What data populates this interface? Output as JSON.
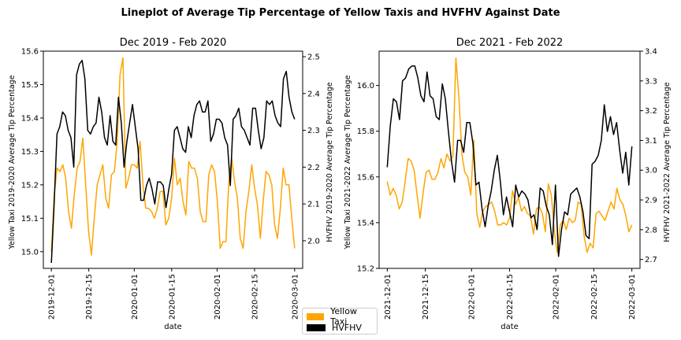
{
  "title": "Lineplot of Average Tip Percentage of Yellow Taxis and HVFHV Against Date",
  "legend": {
    "items": [
      {
        "label": "Yellow Taxi",
        "color": "#FFA500"
      },
      {
        "label": "HVFHV",
        "color": "#000000"
      }
    ]
  },
  "chart_data": [
    {
      "type": "line",
      "title": "Dec 2019 - Feb 2020",
      "xlabel": "date",
      "ylabel_left": "Yellow Taxi 2019-2020 Average Tip Percentage",
      "ylabel_right": "HVFHV 2019-2020 Average Tip Percentage",
      "x_start": "2019-12-01",
      "x_end": "2020-03-01",
      "xlim": [
        "2019-11-28",
        "2020-03-04"
      ],
      "x_ticks": [
        "2019-12-01",
        "2019-12-15",
        "2020-01-01",
        "2020-01-15",
        "2020-02-01",
        "2020-02-15",
        "2020-03-01"
      ],
      "ylim_left": [
        14.95,
        15.6
      ],
      "y_ticks_left": [
        "15.0",
        "15.1",
        "15.2",
        "15.3",
        "15.4",
        "15.5",
        "15.6"
      ],
      "ylim_right": [
        1.925,
        2.515
      ],
      "y_ticks_right": [
        "2.0",
        "2.1",
        "2.2",
        "2.3",
        "2.4",
        "2.5"
      ],
      "series": [
        {
          "name": "Yellow Taxi",
          "axis": "left",
          "color": "#FFA500",
          "values": [
            15.0,
            15.17,
            15.25,
            15.24,
            15.26,
            15.22,
            15.12,
            15.07,
            15.17,
            15.25,
            15.27,
            15.34,
            15.2,
            15.06,
            14.99,
            15.1,
            15.2,
            15.23,
            15.26,
            15.16,
            15.13,
            15.23,
            15.24,
            15.33,
            15.53,
            15.58,
            15.19,
            15.22,
            15.26,
            15.26,
            15.25,
            15.33,
            15.2,
            15.13,
            15.13,
            15.12,
            15.1,
            15.13,
            15.18,
            15.18,
            15.08,
            15.1,
            15.16,
            15.28,
            15.2,
            15.22,
            15.15,
            15.11,
            15.27,
            15.25,
            15.25,
            15.22,
            15.12,
            15.09,
            15.09,
            15.23,
            15.26,
            15.24,
            15.15,
            15.01,
            15.03,
            15.03,
            15.21,
            15.28,
            15.21,
            15.16,
            15.04,
            15.01,
            15.12,
            15.18,
            15.26,
            15.19,
            15.14,
            15.04,
            15.15,
            15.24,
            15.23,
            15.2,
            15.08,
            15.04,
            15.13,
            15.25,
            15.2,
            15.2,
            15.1,
            15.01
          ]
        },
        {
          "name": "HVFHV",
          "axis": "right",
          "color": "#000000",
          "values": [
            1.94,
            2.1,
            2.29,
            2.31,
            2.35,
            2.34,
            2.3,
            2.28,
            2.2,
            2.45,
            2.48,
            2.49,
            2.44,
            2.3,
            2.29,
            2.31,
            2.32,
            2.39,
            2.35,
            2.28,
            2.26,
            2.34,
            2.27,
            2.26,
            2.39,
            2.32,
            2.2,
            2.27,
            2.32,
            2.37,
            2.31,
            2.25,
            2.11,
            2.11,
            2.15,
            2.17,
            2.14,
            2.1,
            2.16,
            2.16,
            2.15,
            2.09,
            2.14,
            2.18,
            2.3,
            2.31,
            2.28,
            2.25,
            2.24,
            2.31,
            2.28,
            2.34,
            2.37,
            2.38,
            2.35,
            2.35,
            2.38,
            2.27,
            2.29,
            2.33,
            2.33,
            2.32,
            2.28,
            2.26,
            2.15,
            2.33,
            2.34,
            2.36,
            2.31,
            2.3,
            2.28,
            2.26,
            2.36,
            2.36,
            2.3,
            2.25,
            2.28,
            2.38,
            2.37,
            2.38,
            2.34,
            2.32,
            2.31,
            2.44,
            2.46,
            2.39,
            2.35,
            2.33
          ]
        }
      ]
    },
    {
      "type": "line",
      "title": "Dec 2021 - Feb 2022",
      "xlabel": "date",
      "ylabel_left": "Yellow Taxi 2021-2022 Average Tip Percentage",
      "ylabel_right": "HVFHV 2021-2022 Average Tip Percentage",
      "x_start": "2021-12-01",
      "x_end": "2022-03-01",
      "xlim": [
        "2021-11-28",
        "2022-03-04"
      ],
      "x_ticks": [
        "2021-12-01",
        "2021-12-15",
        "2022-01-01",
        "2022-01-15",
        "2022-02-01",
        "2022-02-15",
        "2022-03-01"
      ],
      "ylim_left": [
        15.2,
        16.15
      ],
      "y_ticks_left": [
        "15.2",
        "15.4",
        "15.6",
        "15.8",
        "16.0"
      ],
      "ylim_right": [
        2.67,
        3.4
      ],
      "y_ticks_right": [
        "2.7",
        "2.8",
        "2.9",
        "3.0",
        "3.1",
        "3.2",
        "3.3",
        "3.4"
      ],
      "series": [
        {
          "name": "Yellow Taxi",
          "axis": "left",
          "color": "#FFA500",
          "values": [
            15.58,
            15.52,
            15.55,
            15.52,
            15.46,
            15.49,
            15.58,
            15.68,
            15.67,
            15.63,
            15.52,
            15.42,
            15.53,
            15.62,
            15.63,
            15.59,
            15.59,
            15.62,
            15.68,
            15.64,
            15.7,
            15.67,
            15.69,
            16.12,
            15.95,
            15.7,
            15.62,
            15.6,
            15.52,
            15.76,
            15.44,
            15.38,
            15.45,
            15.47,
            15.48,
            15.49,
            15.45,
            15.39,
            15.39,
            15.4,
            15.39,
            15.42,
            15.54,
            15.48,
            15.51,
            15.45,
            15.47,
            15.44,
            15.43,
            15.35,
            15.46,
            15.47,
            15.44,
            15.36,
            15.57,
            15.52,
            15.36,
            15.27,
            15.39,
            15.41,
            15.37,
            15.42,
            15.4,
            15.41,
            15.49,
            15.48,
            15.34,
            15.27,
            15.31,
            15.29,
            15.44,
            15.45,
            15.43,
            15.41,
            15.45,
            15.49,
            15.46,
            15.55,
            15.5,
            15.48,
            15.43,
            15.36,
            15.39
          ]
        },
        {
          "name": "HVFHV",
          "axis": "right",
          "color": "#000000",
          "values": [
            3.01,
            3.15,
            3.24,
            3.23,
            3.17,
            3.3,
            3.31,
            3.34,
            3.35,
            3.35,
            3.31,
            3.25,
            3.23,
            3.33,
            3.25,
            3.24,
            3.18,
            3.17,
            3.29,
            3.24,
            3.13,
            3.03,
            2.96,
            3.1,
            3.1,
            3.06,
            3.16,
            3.16,
            3.09,
            2.95,
            2.96,
            2.87,
            2.81,
            2.88,
            2.93,
            3.0,
            3.05,
            2.96,
            2.85,
            2.91,
            2.86,
            2.81,
            2.95,
            2.91,
            2.93,
            2.92,
            2.9,
            2.84,
            2.85,
            2.8,
            2.94,
            2.93,
            2.88,
            2.85,
            2.75,
            2.95,
            2.71,
            2.8,
            2.86,
            2.85,
            2.92,
            2.93,
            2.94,
            2.91,
            2.86,
            2.78,
            2.77,
            3.02,
            3.03,
            3.05,
            3.1,
            3.22,
            3.13,
            3.18,
            3.12,
            3.16,
            3.07,
            2.99,
            3.06,
            2.95,
            3.08
          ]
        }
      ]
    }
  ]
}
